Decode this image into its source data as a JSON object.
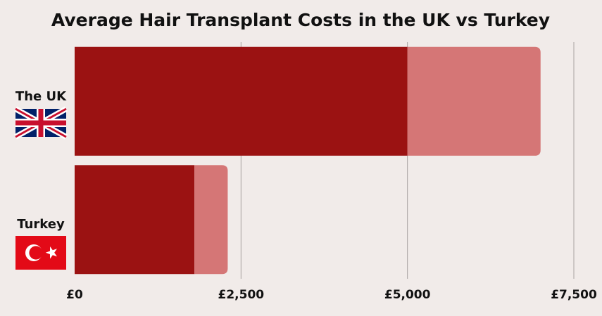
{
  "chart_data": {
    "type": "bar",
    "orientation": "horizontal",
    "stacked": true,
    "title": "Average Hair Transplant Costs in the UK vs Turkey",
    "categories": [
      "The UK",
      "Turkey"
    ],
    "series": [
      {
        "color": "#9b1212",
        "values": [
          5000,
          1800
        ]
      },
      {
        "color": "#d57676",
        "values": [
          2000,
          500
        ]
      }
    ],
    "xlim": [
      0,
      7500
    ],
    "xticks": [
      {
        "value": 0,
        "label": "£0"
      },
      {
        "value": 2500,
        "label": "£2,500"
      },
      {
        "value": 5000,
        "label": "£5,000"
      },
      {
        "value": 7500,
        "label": "£7,500"
      }
    ],
    "grid": true
  }
}
